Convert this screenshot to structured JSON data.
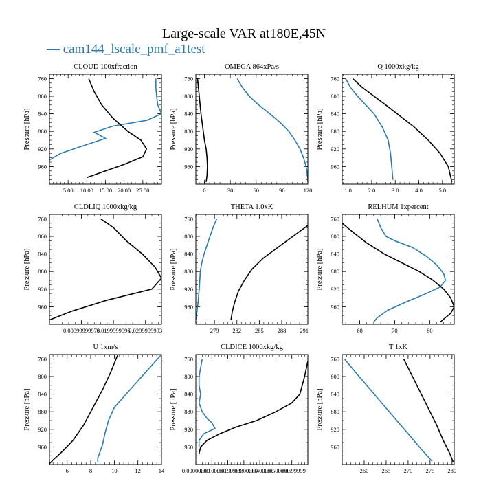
{
  "title": "Large-scale VAR at180E,45N",
  "legend": {
    "label": "— cam144_lscale_pmf_a1test",
    "color": "#2b7bb0"
  },
  "colors": {
    "model": "#2b7bb0",
    "ref": "#000000"
  },
  "chart_data": [
    {
      "type": "line",
      "title": "CLOUD 100xfraction",
      "ylabel": "Pressure [hPa]",
      "xlim": [
        0,
        30
      ],
      "ylim": [
        750,
        1000
      ],
      "xticks": [
        5,
        10,
        15,
        20,
        25
      ],
      "xtick_labels": [
        "5.00",
        "10.00",
        "15.00",
        "20.00",
        "25.00"
      ],
      "yticks": [
        760,
        800,
        840,
        880,
        920,
        960
      ],
      "series": [
        {
          "name": "model",
          "x": [
            28.5,
            28.5,
            28.7,
            29.0,
            30,
            26,
            17,
            12,
            15,
            10,
            3,
            0
          ],
          "y": [
            760,
            780,
            800,
            820,
            840,
            855,
            868,
            882,
            896,
            910,
            930,
            945
          ]
        },
        {
          "name": "ref",
          "x": [
            10.5,
            12,
            14,
            17,
            21,
            24.5,
            26,
            25,
            20,
            15,
            10
          ],
          "y": [
            760,
            790,
            820,
            850,
            880,
            900,
            920,
            938,
            955,
            970,
            985
          ]
        }
      ]
    },
    {
      "type": "line",
      "title": "OMEGA 864xPa/s",
      "ylabel": "Pressure [hPa]",
      "xlim": [
        -10,
        120
      ],
      "ylim": [
        750,
        1000
      ],
      "xticks": [
        0,
        30,
        60,
        90,
        120
      ],
      "xtick_labels": [
        "0",
        "30",
        "60",
        "90",
        "120"
      ],
      "yticks": [
        760,
        800,
        840,
        880,
        920,
        960
      ],
      "series": [
        {
          "name": "model",
          "x": [
            38,
            44,
            52,
            63,
            76,
            88,
            98,
            105,
            111,
            115,
            118,
            119.5,
            120
          ],
          "y": [
            760,
            780,
            800,
            820,
            840,
            860,
            880,
            900,
            920,
            940,
            960,
            980,
            995
          ]
        },
        {
          "name": "ref",
          "x": [
            -8,
            -6,
            -4,
            -2,
            0,
            2,
            3,
            3.5,
            3,
            2
          ],
          "y": [
            760,
            800,
            840,
            870,
            900,
            920,
            940,
            960,
            980,
            995
          ]
        }
      ]
    },
    {
      "type": "line",
      "title": "Q 1000xkg/kg",
      "ylabel": "Pressure [hPa]",
      "xlim": [
        0.75,
        5.5
      ],
      "ylim": [
        750,
        1000
      ],
      "xticks": [
        1.0,
        2.0,
        3.0,
        4.0,
        5.0
      ],
      "xtick_labels": [
        "1.0",
        "2.0",
        "3.0",
        "4.0",
        "5.0"
      ],
      "yticks": [
        760,
        800,
        840,
        880,
        920,
        960
      ],
      "series": [
        {
          "name": "model",
          "x": [
            0.9,
            1.1,
            1.4,
            1.75,
            2.1,
            2.45,
            2.7,
            2.8,
            2.85,
            2.9
          ],
          "y": [
            760,
            780,
            800,
            820,
            840,
            870,
            900,
            930,
            960,
            990
          ]
        },
        {
          "name": "ref",
          "x": [
            1.2,
            1.6,
            2.1,
            2.6,
            3.2,
            3.8,
            4.4,
            4.9,
            5.25,
            5.4
          ],
          "y": [
            760,
            780,
            800,
            820,
            845,
            870,
            900,
            930,
            960,
            995
          ]
        }
      ]
    },
    {
      "type": "line",
      "title": "CLDLIQ 1000xkg/kg",
      "ylabel": "Pressure [hPa]",
      "xlim": [
        0,
        0.035
      ],
      "ylim": [
        750,
        1000
      ],
      "xticks": [
        0.01,
        0.02,
        0.03
      ],
      "xtick_labels": [
        "0.00999999978",
        "0.0199999996",
        "0.0299999993"
      ],
      "yticks": [
        760,
        800,
        840,
        880,
        920,
        960
      ],
      "series": [
        {
          "name": "ref",
          "x": [
            0.016,
            0.02,
            0.024,
            0.029,
            0.033,
            0.035,
            0.032,
            0.018,
            0.007,
            0
          ],
          "y": [
            760,
            780,
            810,
            840,
            870,
            895,
            920,
            945,
            970,
            990
          ]
        }
      ]
    },
    {
      "type": "line",
      "title": "THETA 1.0xK",
      "ylabel": "Pressure [hPa]",
      "xlim": [
        276.5,
        291.5
      ],
      "ylim": [
        750,
        1000
      ],
      "xticks": [
        279,
        282,
        285,
        288,
        291
      ],
      "xtick_labels": [
        "279",
        "282",
        "285",
        "288",
        "291"
      ],
      "yticks": [
        760,
        800,
        840,
        880,
        920,
        960
      ],
      "series": [
        {
          "name": "model",
          "x": [
            279.3,
            278.8,
            278.4,
            278.0,
            277.6,
            277.3,
            277.1,
            277.0,
            276.8,
            276.5
          ],
          "y": [
            760,
            780,
            800,
            820,
            840,
            860,
            880,
            910,
            950,
            990
          ]
        },
        {
          "name": "ref",
          "x": [
            291.5,
            289.5,
            287.5,
            285.5,
            284,
            283,
            282.2,
            281.7,
            281.4,
            281.2
          ],
          "y": [
            775,
            800,
            825,
            850,
            875,
            900,
            925,
            950,
            970,
            990
          ]
        }
      ]
    },
    {
      "type": "line",
      "title": "RELHUM 1xpercent",
      "ylabel": "Pressure [hPa]",
      "xlim": [
        55,
        87
      ],
      "ylim": [
        750,
        1000
      ],
      "xticks": [
        60,
        70,
        80
      ],
      "xtick_labels": [
        "60",
        "70",
        "80"
      ],
      "yticks": [
        760,
        800,
        840,
        880,
        920,
        960
      ],
      "series": [
        {
          "name": "model",
          "x": [
            65,
            66,
            67.5,
            70,
            75,
            79,
            82,
            84,
            84.5,
            83,
            79,
            73,
            68,
            65,
            64
          ],
          "y": [
            760,
            780,
            800,
            810,
            825,
            845,
            865,
            885,
            900,
            915,
            930,
            950,
            968,
            985,
            995
          ]
        },
        {
          "name": "ref",
          "x": [
            55,
            58,
            62,
            67,
            72,
            77,
            81,
            84,
            86,
            87,
            86,
            84,
            83
          ],
          "y": [
            770,
            790,
            815,
            840,
            860,
            880,
            900,
            920,
            940,
            960,
            975,
            988,
            995
          ]
        }
      ]
    },
    {
      "type": "line",
      "title": "U 1xm/s",
      "ylabel": "Pressure [hPa]",
      "xlim": [
        4.5,
        14
      ],
      "ylim": [
        750,
        1000
      ],
      "xticks": [
        6,
        8,
        10,
        12,
        14
      ],
      "xtick_labels": [
        "6",
        "8",
        "10",
        "12",
        "14"
      ],
      "yticks": [
        760,
        800,
        840,
        880,
        920,
        960
      ],
      "series": [
        {
          "name": "model",
          "x": [
            14,
            13,
            12,
            11,
            10,
            9.5,
            9.2,
            9.0,
            8.8,
            8.6,
            8.6
          ],
          "y": [
            750,
            780,
            810,
            840,
            870,
            900,
            930,
            955,
            970,
            985,
            995
          ]
        },
        {
          "name": "ref",
          "x": [
            10.3,
            9.7,
            9,
            8.2,
            7.4,
            6.5,
            5.6,
            4.8,
            4.5
          ],
          "y": [
            750,
            790,
            830,
            870,
            910,
            945,
            970,
            990,
            998
          ]
        }
      ]
    },
    {
      "type": "line",
      "title": "CLDICE 1000xkg/kg",
      "ylabel": "Pressure [hPa]",
      "xlim": [
        0,
        0.007
      ],
      "ylim": [
        750,
        1000
      ],
      "xticks": [
        0.0,
        0.001,
        0.002,
        0.003,
        0.004,
        0.005,
        0.006
      ],
      "xtick_labels": [
        "0.00000000",
        "0.00100000",
        "0.00199999",
        "0.00300000",
        "0.00400000",
        "0.00500000",
        "0.00599999"
      ],
      "yticks": [
        760,
        800,
        840,
        880,
        920,
        960
      ],
      "series": [
        {
          "name": "model",
          "x": [
            0.0004,
            0.0003,
            0.0002,
            0.0002,
            0.0003,
            0.0002,
            0.0004,
            0.0007,
            0.001,
            0.0012,
            0.0005,
            0.0002,
            0.0002
          ],
          "y": [
            760,
            780,
            800,
            820,
            840,
            860,
            880,
            895,
            905,
            918,
            930,
            945,
            960
          ]
        },
        {
          "name": "ref",
          "x": [
            0.007,
            0.0068,
            0.0065,
            0.006,
            0.005,
            0.0038,
            0.0025,
            0.0015,
            0.0007,
            0.0003,
            0.0002
          ],
          "y": [
            765,
            800,
            840,
            860,
            880,
            900,
            915,
            930,
            945,
            960,
            975
          ]
        }
      ]
    },
    {
      "type": "line",
      "title": "T 1xK",
      "ylabel": "Pressure [hPa]",
      "xlim": [
        255,
        280.5
      ],
      "ylim": [
        750,
        1000
      ],
      "xticks": [
        260,
        265,
        270,
        275,
        280
      ],
      "xtick_labels": [
        "260",
        "265",
        "270",
        "275",
        "280"
      ],
      "yticks": [
        760,
        800,
        840,
        880,
        920,
        960
      ],
      "series": [
        {
          "name": "model",
          "x": [
            255.5,
            258,
            261,
            264,
            267,
            270,
            273,
            275.5
          ],
          "y": [
            760,
            790,
            825,
            860,
            895,
            930,
            965,
            993
          ]
        },
        {
          "name": "ref",
          "x": [
            269,
            270.5,
            272,
            273.5,
            275,
            276.5,
            278,
            279.5,
            280.3
          ],
          "y": [
            760,
            790,
            820,
            850,
            880,
            910,
            945,
            975,
            995
          ]
        }
      ]
    }
  ]
}
